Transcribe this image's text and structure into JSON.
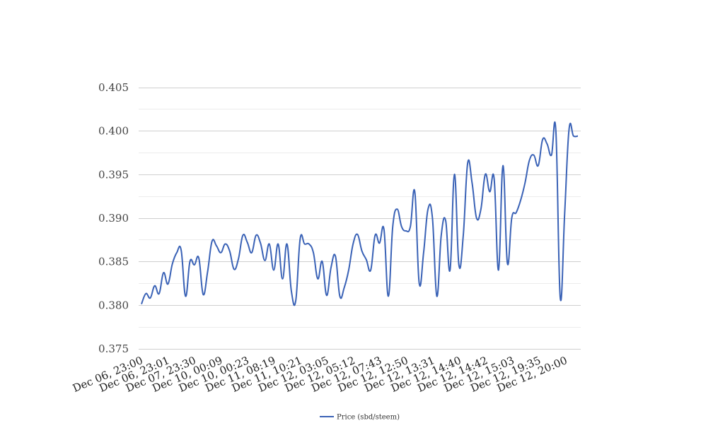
{
  "chart_data": {
    "type": "line",
    "title": "",
    "xlabel": "",
    "ylabel": "",
    "ylim": [
      0.375,
      0.405
    ],
    "y_ticks": [
      "0.375",
      "0.380",
      "0.385",
      "0.390",
      "0.395",
      "0.400",
      "0.405"
    ],
    "y_tick_values": [
      0.375,
      0.38,
      0.385,
      0.39,
      0.395,
      0.4,
      0.405
    ],
    "x_tick_labels": [
      "Dec 06, 23:00",
      "Dec 06, 23:01",
      "Dec 07, 23:30",
      "Dec 10, 00:09",
      "Dec 10, 00:23",
      "Dec 11, 08:19",
      "Dec 11, 10:21",
      "Dec 12, 03:05",
      "Dec 12, 05:12",
      "Dec 12, 07:43",
      "Dec 12, 12:50",
      "Dec 12, 13:31",
      "Dec 12, 14:40",
      "Dec 12, 14:42",
      "Dec 12, 15:03",
      "Dec 12, 19:35",
      "Dec 12, 20:00"
    ],
    "grid": true,
    "legend_position": "bottom",
    "series": [
      {
        "name": "Price (sbd/steem)",
        "color": "#3a62b6",
        "values": [
          0.3801,
          0.3813,
          0.3808,
          0.3822,
          0.3813,
          0.3837,
          0.3824,
          0.3847,
          0.386,
          0.3863,
          0.381,
          0.385,
          0.3846,
          0.3854,
          0.3812,
          0.3838,
          0.3873,
          0.3868,
          0.386,
          0.387,
          0.3862,
          0.3841,
          0.3853,
          0.388,
          0.3872,
          0.386,
          0.388,
          0.3871,
          0.3851,
          0.387,
          0.384,
          0.387,
          0.383,
          0.387,
          0.3816,
          0.3805,
          0.3876,
          0.387,
          0.387,
          0.386,
          0.383,
          0.385,
          0.3811,
          0.3843,
          0.3856,
          0.381,
          0.382,
          0.384,
          0.387,
          0.3881,
          0.3862,
          0.3852,
          0.384,
          0.388,
          0.3871,
          0.3887,
          0.381,
          0.389,
          0.391,
          0.389,
          0.3885,
          0.389,
          0.393,
          0.3825,
          0.386,
          0.391,
          0.39,
          0.381,
          0.388,
          0.3897,
          0.384,
          0.395,
          0.3846,
          0.388,
          0.3963,
          0.394,
          0.39,
          0.391,
          0.395,
          0.393,
          0.3945,
          0.384,
          0.396,
          0.3848,
          0.39,
          0.3906,
          0.392,
          0.394,
          0.3966,
          0.3972,
          0.396,
          0.399,
          0.3985,
          0.3972,
          0.4,
          0.3808,
          0.3905,
          0.4002,
          0.3994,
          0.3994
        ]
      }
    ]
  }
}
